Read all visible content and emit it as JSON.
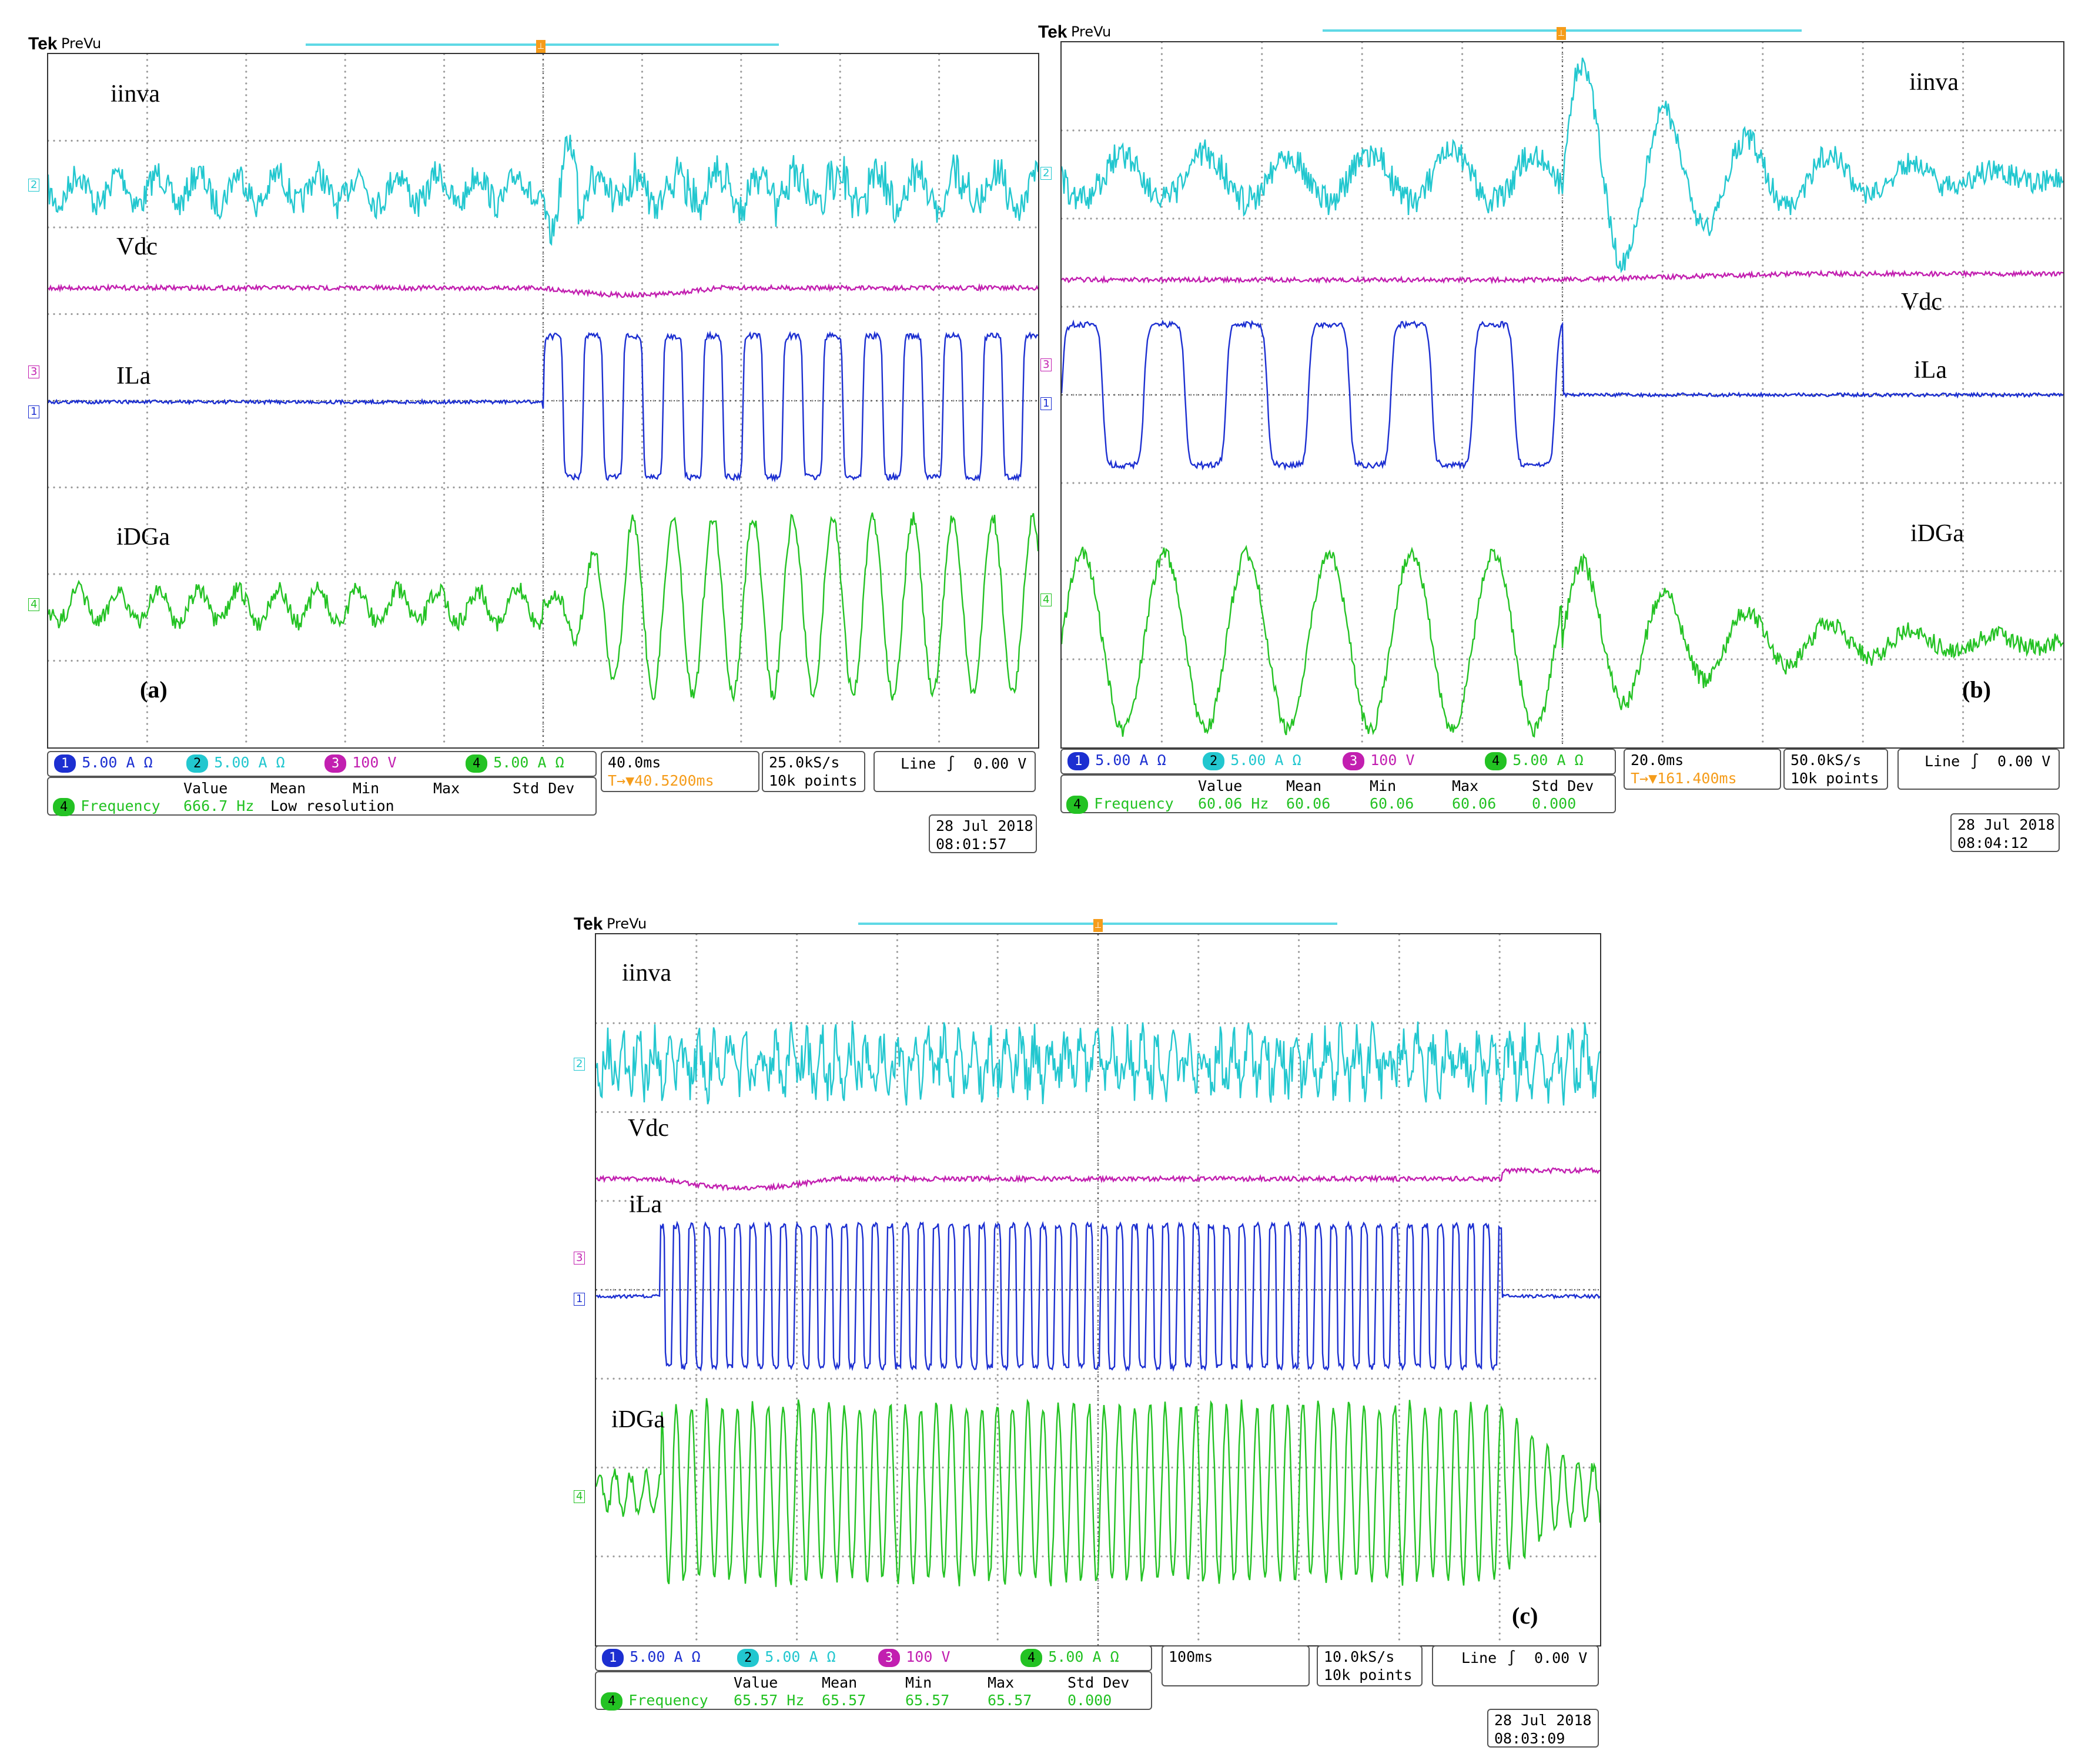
{
  "colors": {
    "ch1": "#1c2fd1",
    "ch2": "#22c7cf",
    "ch3": "#c21fb0",
    "ch4": "#23c223",
    "trigger": "#f59c1a"
  },
  "panels": [
    {
      "id": "a",
      "brand": "Tek",
      "mode": "PreVu",
      "labels": {
        "iinva": "iinva",
        "vdc": "Vdc",
        "ila": "ILa",
        "idga": "iDGa"
      },
      "fig_label": "(a)",
      "channels": [
        {
          "num": "1",
          "scale": "5.00 A",
          "unit": "Ω"
        },
        {
          "num": "2",
          "scale": "5.00 A",
          "unit": "Ω"
        },
        {
          "num": "3",
          "scale": "100 V",
          "unit": ""
        },
        {
          "num": "4",
          "scale": "5.00 A",
          "unit": "Ω"
        }
      ],
      "timebase": "40.0ms",
      "trigger_pos": "▼40.5200ms",
      "sample_rate": "25.0kS/s",
      "record": "10k points",
      "trigger_mode": "Line",
      "trigger_symbol": "∫",
      "trigger_level": "0.00 V",
      "measure": {
        "headers": [
          "Value",
          "Mean",
          "Min",
          "Max",
          "Std Dev"
        ],
        "ch": "4",
        "name": "Frequency",
        "value": "666.7 Hz",
        "rest": "Low resolution",
        "mean": "",
        "min": "",
        "max": "",
        "std": ""
      },
      "date": "28 Jul  2018",
      "time": "08:01:57"
    },
    {
      "id": "b",
      "brand": "Tek",
      "mode": "PreVu",
      "labels": {
        "iinva": "iinva",
        "vdc": "Vdc",
        "ila": "iLa",
        "idga": "iDGa"
      },
      "fig_label": "(b)",
      "channels": [
        {
          "num": "1",
          "scale": "5.00 A",
          "unit": "Ω"
        },
        {
          "num": "2",
          "scale": "5.00 A",
          "unit": "Ω"
        },
        {
          "num": "3",
          "scale": "100 V",
          "unit": ""
        },
        {
          "num": "4",
          "scale": "5.00 A",
          "unit": "Ω"
        }
      ],
      "timebase": "20.0ms",
      "trigger_pos": "▼161.400ms",
      "sample_rate": "50.0kS/s",
      "record": "10k points",
      "trigger_mode": "Line",
      "trigger_symbol": "∫",
      "trigger_level": "0.00 V",
      "measure": {
        "headers": [
          "Value",
          "Mean",
          "Min",
          "Max",
          "Std Dev"
        ],
        "ch": "4",
        "name": "Frequency",
        "value": "60.06 Hz",
        "rest": "",
        "mean": "60.06",
        "min": "60.06",
        "max": "60.06",
        "std": "0.000"
      },
      "date": "28 Jul  2018",
      "time": "08:04:12"
    },
    {
      "id": "c",
      "brand": "Tek",
      "mode": "PreVu",
      "labels": {
        "iinva": "iinva",
        "vdc": "Vdc",
        "ila": "iLa",
        "idga": "iDGa"
      },
      "fig_label": "(c)",
      "channels": [
        {
          "num": "1",
          "scale": "5.00 A",
          "unit": "Ω"
        },
        {
          "num": "2",
          "scale": "5.00 A",
          "unit": "Ω"
        },
        {
          "num": "3",
          "scale": "100 V",
          "unit": ""
        },
        {
          "num": "4",
          "scale": "5.00 A",
          "unit": "Ω"
        }
      ],
      "timebase": "100ms",
      "trigger_pos": "",
      "sample_rate": "10.0kS/s",
      "record": "10k points",
      "trigger_mode": "Line",
      "trigger_symbol": "∫",
      "trigger_level": "0.00 V",
      "measure": {
        "headers": [
          "Value",
          "Mean",
          "Min",
          "Max",
          "Std Dev"
        ],
        "ch": "4",
        "name": "Frequency",
        "value": "65.57 Hz",
        "rest": "",
        "mean": "65.57",
        "min": "65.57",
        "max": "65.57",
        "std": "0.000"
      },
      "date": "28 Jul  2018",
      "time": "08:03:09"
    }
  ]
}
